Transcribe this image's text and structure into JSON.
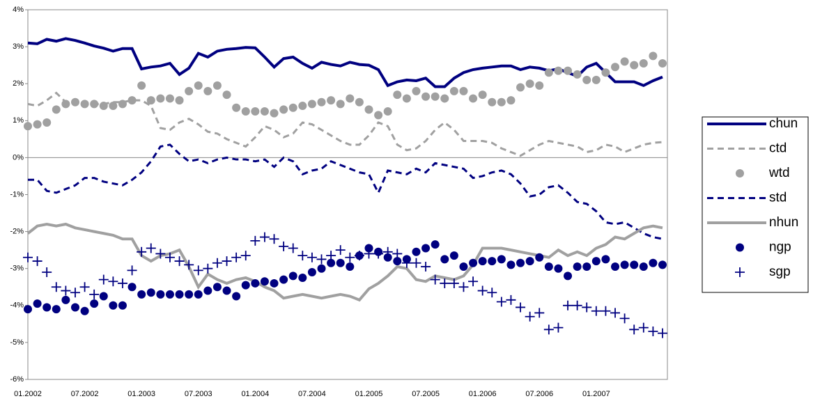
{
  "chart_data": {
    "type": "line",
    "categories": [
      "01.2002",
      null,
      null,
      null,
      null,
      null,
      "07.2002",
      null,
      null,
      null,
      null,
      null,
      "01.2003",
      null,
      null,
      null,
      null,
      null,
      "07.2003",
      null,
      null,
      null,
      null,
      null,
      "01.2004",
      null,
      null,
      null,
      null,
      null,
      "07.2004",
      null,
      null,
      null,
      null,
      null,
      "01.2005",
      null,
      null,
      null,
      null,
      null,
      "07.2005",
      null,
      null,
      null,
      null,
      null,
      "01.2006",
      null,
      null,
      null,
      null,
      null,
      "07.2006",
      null,
      null,
      null,
      null,
      null,
      "01.2007",
      null,
      null,
      null,
      null,
      null,
      null,
      null
    ],
    "ylim": [
      -6,
      4
    ],
    "yticks": [
      {
        "value": -6,
        "label": "-6%"
      },
      {
        "value": -5,
        "label": "-5%"
      },
      {
        "value": -4,
        "label": "-4%"
      },
      {
        "value": -3,
        "label": "-3%"
      },
      {
        "value": -2,
        "label": "-2%"
      },
      {
        "value": -1,
        "label": "-1%"
      },
      {
        "value": 0,
        "label": "0%"
      },
      {
        "value": 1,
        "label": "1%"
      },
      {
        "value": 2,
        "label": "2%"
      },
      {
        "value": 3,
        "label": "3%"
      },
      {
        "value": 4,
        "label": "4%"
      }
    ],
    "grid": false,
    "legend": "right",
    "series": [
      {
        "name": "chun",
        "color": "#000080",
        "line": "solid",
        "marker": "none",
        "values": [
          3.1,
          3.08,
          3.2,
          3.15,
          3.22,
          3.17,
          3.1,
          3.02,
          2.96,
          2.88,
          2.95,
          2.95,
          2.4,
          2.45,
          2.48,
          2.55,
          2.25,
          2.42,
          2.82,
          2.72,
          2.88,
          2.93,
          2.95,
          2.98,
          2.97,
          2.72,
          2.45,
          2.68,
          2.72,
          2.55,
          2.42,
          2.58,
          2.52,
          2.48,
          2.58,
          2.52,
          2.5,
          2.38,
          1.95,
          2.05,
          2.1,
          2.08,
          2.15,
          1.92,
          1.92,
          2.15,
          2.3,
          2.38,
          2.42,
          2.45,
          2.48,
          2.48,
          2.38,
          2.45,
          2.42,
          2.35,
          2.4,
          2.3,
          2.2,
          2.45,
          2.55,
          2.3,
          2.05,
          2.05,
          2.05,
          1.95,
          2.08,
          2.18
        ]
      },
      {
        "name": "ctd",
        "color": "#a0a0a0",
        "line": "dash",
        "marker": "none",
        "values": [
          1.45,
          1.4,
          1.55,
          1.75,
          1.5,
          1.45,
          1.5,
          1.45,
          1.45,
          1.5,
          1.5,
          1.55,
          1.55,
          1.4,
          0.8,
          0.75,
          0.95,
          1.05,
          0.9,
          0.7,
          0.65,
          0.5,
          0.4,
          0.3,
          0.55,
          0.85,
          0.75,
          0.55,
          0.65,
          0.95,
          0.9,
          0.75,
          0.6,
          0.45,
          0.35,
          0.35,
          0.6,
          0.95,
          0.85,
          0.35,
          0.2,
          0.25,
          0.45,
          0.75,
          0.95,
          0.75,
          0.45,
          0.45,
          0.45,
          0.4,
          0.25,
          0.15,
          0.05,
          0.2,
          0.35,
          0.45,
          0.4,
          0.35,
          0.3,
          0.15,
          0.2,
          0.35,
          0.3,
          0.15,
          0.25,
          0.35,
          0.4,
          0.42
        ]
      },
      {
        "name": "wtd",
        "color": "#a0a0a0",
        "line": "none",
        "marker": "circle",
        "values": [
          0.85,
          0.9,
          0.95,
          1.3,
          1.45,
          1.5,
          1.45,
          1.45,
          1.4,
          1.4,
          1.45,
          1.55,
          1.95,
          1.55,
          1.6,
          1.6,
          1.55,
          1.8,
          1.95,
          1.8,
          1.95,
          1.7,
          1.35,
          1.25,
          1.25,
          1.25,
          1.2,
          1.3,
          1.35,
          1.4,
          1.45,
          1.5,
          1.55,
          1.45,
          1.6,
          1.5,
          1.3,
          1.15,
          1.25,
          1.7,
          1.6,
          1.8,
          1.65,
          1.65,
          1.6,
          1.8,
          1.8,
          1.6,
          1.7,
          1.5,
          1.5,
          1.55,
          1.9,
          2.0,
          1.95,
          2.3,
          2.35,
          2.35,
          2.25,
          2.1,
          2.1,
          2.3,
          2.45,
          2.6,
          2.5,
          2.55,
          2.75,
          2.55
        ]
      },
      {
        "name": "std",
        "color": "#000080",
        "line": "dash",
        "marker": "none",
        "values": [
          -0.6,
          -0.6,
          -0.9,
          -0.95,
          -0.85,
          -0.75,
          -0.55,
          -0.55,
          -0.65,
          -0.7,
          -0.75,
          -0.6,
          -0.4,
          -0.1,
          0.3,
          0.35,
          0.1,
          -0.1,
          -0.05,
          -0.15,
          -0.05,
          0.0,
          -0.05,
          -0.05,
          -0.1,
          -0.05,
          -0.25,
          0.0,
          -0.1,
          -0.45,
          -0.35,
          -0.3,
          -0.1,
          -0.2,
          -0.3,
          -0.4,
          -0.45,
          -0.95,
          -0.35,
          -0.4,
          -0.45,
          -0.3,
          -0.4,
          -0.15,
          -0.2,
          -0.25,
          -0.3,
          -0.55,
          -0.5,
          -0.4,
          -0.35,
          -0.45,
          -0.7,
          -1.05,
          -1.0,
          -0.8,
          -0.75,
          -0.95,
          -1.2,
          -1.25,
          -1.45,
          -1.75,
          -1.8,
          -1.75,
          -1.9,
          -2.05,
          -2.15,
          -2.2
        ]
      },
      {
        "name": "nhun",
        "color": "#a0a0a0",
        "line": "solid",
        "marker": "none",
        "values": [
          -2.05,
          -1.85,
          -1.8,
          -1.85,
          -1.8,
          -1.9,
          -1.95,
          -2.0,
          -2.05,
          -2.1,
          -2.2,
          -2.2,
          -2.65,
          -2.8,
          -2.65,
          -2.6,
          -2.5,
          -2.95,
          -3.5,
          -3.15,
          -3.3,
          -3.4,
          -3.3,
          -3.25,
          -3.35,
          -3.5,
          -3.6,
          -3.8,
          -3.75,
          -3.7,
          -3.75,
          -3.8,
          -3.75,
          -3.7,
          -3.75,
          -3.85,
          -3.55,
          -3.4,
          -3.2,
          -2.95,
          -3.0,
          -3.3,
          -3.35,
          -3.2,
          -3.25,
          -3.3,
          -3.2,
          -2.9,
          -2.45,
          -2.45,
          -2.45,
          -2.5,
          -2.55,
          -2.6,
          -2.65,
          -2.7,
          -2.5,
          -2.65,
          -2.55,
          -2.65,
          -2.45,
          -2.35,
          -2.15,
          -2.2,
          -2.05,
          -1.9,
          -1.85,
          -1.9
        ]
      },
      {
        "name": "ngp",
        "color": "#000080",
        "line": "none",
        "marker": "circle",
        "values": [
          -4.1,
          -3.95,
          -4.05,
          -4.1,
          -3.85,
          -4.05,
          -4.15,
          -3.95,
          -3.75,
          -4.0,
          -4.0,
          -3.5,
          -3.7,
          -3.65,
          -3.7,
          -3.7,
          -3.7,
          -3.7,
          -3.7,
          -3.6,
          -3.5,
          -3.6,
          -3.75,
          -3.45,
          -3.4,
          -3.35,
          -3.4,
          -3.3,
          -3.2,
          -3.25,
          -3.1,
          -3.0,
          -2.85,
          -2.85,
          -2.95,
          -2.65,
          -2.45,
          -2.55,
          -2.7,
          -2.8,
          -2.75,
          -2.55,
          -2.45,
          -2.35,
          -2.75,
          -2.65,
          -2.95,
          -2.85,
          -2.8,
          -2.8,
          -2.75,
          -2.9,
          -2.85,
          -2.8,
          -2.7,
          -2.95,
          -3.0,
          -3.2,
          -2.95,
          -2.95,
          -2.8,
          -2.75,
          -2.95,
          -2.9,
          -2.9,
          -2.95,
          -2.85,
          -2.9
        ]
      },
      {
        "name": "sgp",
        "color": "#000080",
        "line": "none",
        "marker": "plus",
        "values": [
          -2.7,
          -2.8,
          -3.1,
          -3.5,
          -3.6,
          -3.65,
          -3.5,
          -3.7,
          -3.3,
          -3.35,
          -3.4,
          -3.05,
          -2.55,
          -2.45,
          -2.6,
          -2.7,
          -2.8,
          -2.9,
          -3.05,
          -3.0,
          -2.85,
          -2.8,
          -2.7,
          -2.65,
          -2.25,
          -2.15,
          -2.2,
          -2.4,
          -2.45,
          -2.65,
          -2.7,
          -2.75,
          -2.65,
          -2.5,
          -2.7,
          -2.65,
          -2.6,
          -2.6,
          -2.55,
          -2.6,
          -2.85,
          -2.85,
          -2.95,
          -3.3,
          -3.4,
          -3.4,
          -3.5,
          -3.35,
          -3.6,
          -3.65,
          -3.9,
          -3.85,
          -4.05,
          -4.3,
          -4.2,
          -4.65,
          -4.6,
          -4.0,
          -4.0,
          -4.05,
          -4.15,
          -4.15,
          -4.2,
          -4.35,
          -4.65,
          -4.6,
          -4.7,
          -4.75
        ]
      }
    ]
  }
}
